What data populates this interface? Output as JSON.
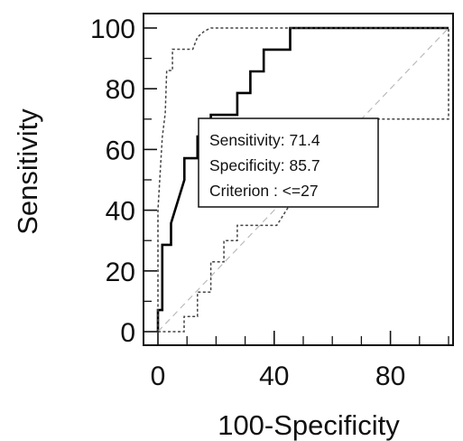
{
  "chart_data": {
    "type": "line",
    "xlabel": "100-Specificity",
    "ylabel": "Sensitivity",
    "xlim": [
      0,
      100
    ],
    "ylim": [
      0,
      100
    ],
    "xticks": [
      0,
      40,
      80
    ],
    "yticks": [
      0,
      20,
      40,
      60,
      80,
      100
    ],
    "grid": false,
    "series": [
      {
        "style": "solid",
        "color": "#000000",
        "x": [
          0,
          0,
          1.5,
          1.5,
          4.5,
          4.5,
          9.1,
          9.1,
          13.6,
          13.6,
          18.2,
          18.2,
          27.3,
          27.3,
          31.8,
          31.8,
          36.4,
          36.4,
          40.9,
          40.9,
          45.5,
          45.5,
          100
        ],
        "y": [
          0,
          7.1,
          7.1,
          28.6,
          28.6,
          35.7,
          50,
          57.1,
          57.1,
          64.3,
          64.3,
          71.4,
          71.4,
          78.6,
          78.6,
          85.7,
          85.7,
          92.9,
          92.9,
          92.9,
          92.9,
          100,
          100
        ]
      },
      {
        "style": "dotted",
        "color": "#444444",
        "x": [
          0,
          0,
          1.5,
          2.5,
          3.0,
          5.0,
          5.0,
          12,
          13.6,
          16,
          18.2,
          27,
          42,
          100
        ],
        "y": [
          0,
          40,
          64,
          72,
          86,
          86,
          93,
          93,
          97,
          99,
          100,
          100,
          100,
          100
        ]
      },
      {
        "style": "dotted",
        "color": "#444444",
        "x": [
          0,
          9,
          9,
          13.6,
          13.6,
          18.2,
          18.2,
          22.7,
          22.7,
          27.3,
          27.3,
          31.8,
          40.9,
          45.5,
          45.5,
          100,
          100
        ],
        "y": [
          0,
          0,
          5,
          5,
          13,
          13,
          23,
          23,
          30,
          30,
          35,
          35,
          35,
          42,
          70,
          70,
          100
        ]
      },
      {
        "style": "dashed",
        "color": "#bbbbbb",
        "x": [
          0,
          100
        ],
        "y": [
          0,
          100
        ]
      }
    ],
    "annotations": [
      "Sensitivity: 71.4",
      "Specificity: 85.7",
      "Criterion : <=27"
    ]
  }
}
